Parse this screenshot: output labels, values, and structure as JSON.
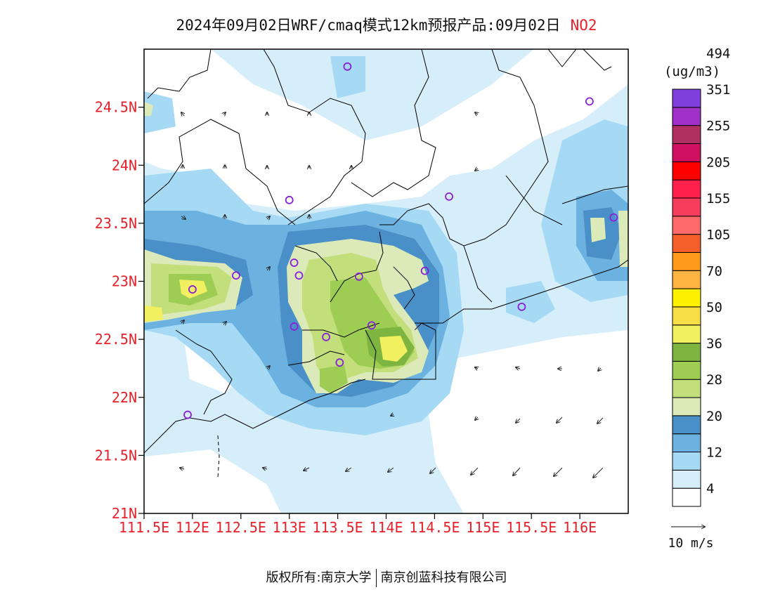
{
  "title": {
    "main": "2024年09月02日WRF/cmaq模式12km预报产品:09月02日",
    "pollutant": "NO2"
  },
  "map": {
    "lat_ticks": [
      "24.5N",
      "24N",
      "23.5N",
      "23N",
      "22.5N",
      "22N",
      "21.5N",
      "21N"
    ],
    "lon_ticks": [
      "111.5E",
      "112E",
      "112.5E",
      "113E",
      "113.5E",
      "114E",
      "114.5E",
      "115E",
      "115.5E",
      "116E"
    ],
    "lon_range": [
      111.5,
      116.5
    ],
    "lat_range": [
      21.0,
      25.0
    ],
    "tick_color": "#e8202a",
    "stations": [
      {
        "lon": 113.6,
        "lat": 24.85
      },
      {
        "lon": 116.1,
        "lat": 24.55
      },
      {
        "lon": 113.0,
        "lat": 23.7
      },
      {
        "lon": 114.65,
        "lat": 23.73
      },
      {
        "lon": 116.35,
        "lat": 23.55
      },
      {
        "lon": 113.05,
        "lat": 23.16
      },
      {
        "lon": 113.1,
        "lat": 23.05
      },
      {
        "lon": 112.45,
        "lat": 23.05
      },
      {
        "lon": 113.72,
        "lat": 23.04
      },
      {
        "lon": 114.4,
        "lat": 23.09
      },
      {
        "lon": 112.0,
        "lat": 22.93
      },
      {
        "lon": 115.4,
        "lat": 22.78
      },
      {
        "lon": 113.05,
        "lat": 22.61
      },
      {
        "lon": 113.85,
        "lat": 22.62
      },
      {
        "lon": 113.38,
        "lat": 22.52
      },
      {
        "lon": 113.52,
        "lat": 22.3
      },
      {
        "lon": 111.95,
        "lat": 21.85
      }
    ],
    "station_color": "#8a1fd8"
  },
  "legend": {
    "unit": "(ug/m3)",
    "colors": [
      "#ffffff",
      "#d6eefa",
      "#a6daf4",
      "#6bb2e0",
      "#4a90c8",
      "#dce9b8",
      "#c2df7c",
      "#9ecd54",
      "#7db540",
      "#f0f060",
      "#f7de45",
      "#fff100",
      "#ffb340",
      "#ff9a1a",
      "#f5602a",
      "#ff6a6a",
      "#f63d5b",
      "#ff1f4b",
      "#ff0000",
      "#d01060",
      "#b03060",
      "#a030c8",
      "#8040e0"
    ],
    "labels": [
      "4",
      "12",
      "20",
      "28",
      "36",
      "50",
      "70",
      "105",
      "155",
      "205",
      "255",
      "351",
      "494"
    ]
  },
  "wind_scale": {
    "label": "10 m/s"
  },
  "footer": {
    "left": "版权所有:南京大学",
    "right": "南京创蓝科技有限公司"
  }
}
